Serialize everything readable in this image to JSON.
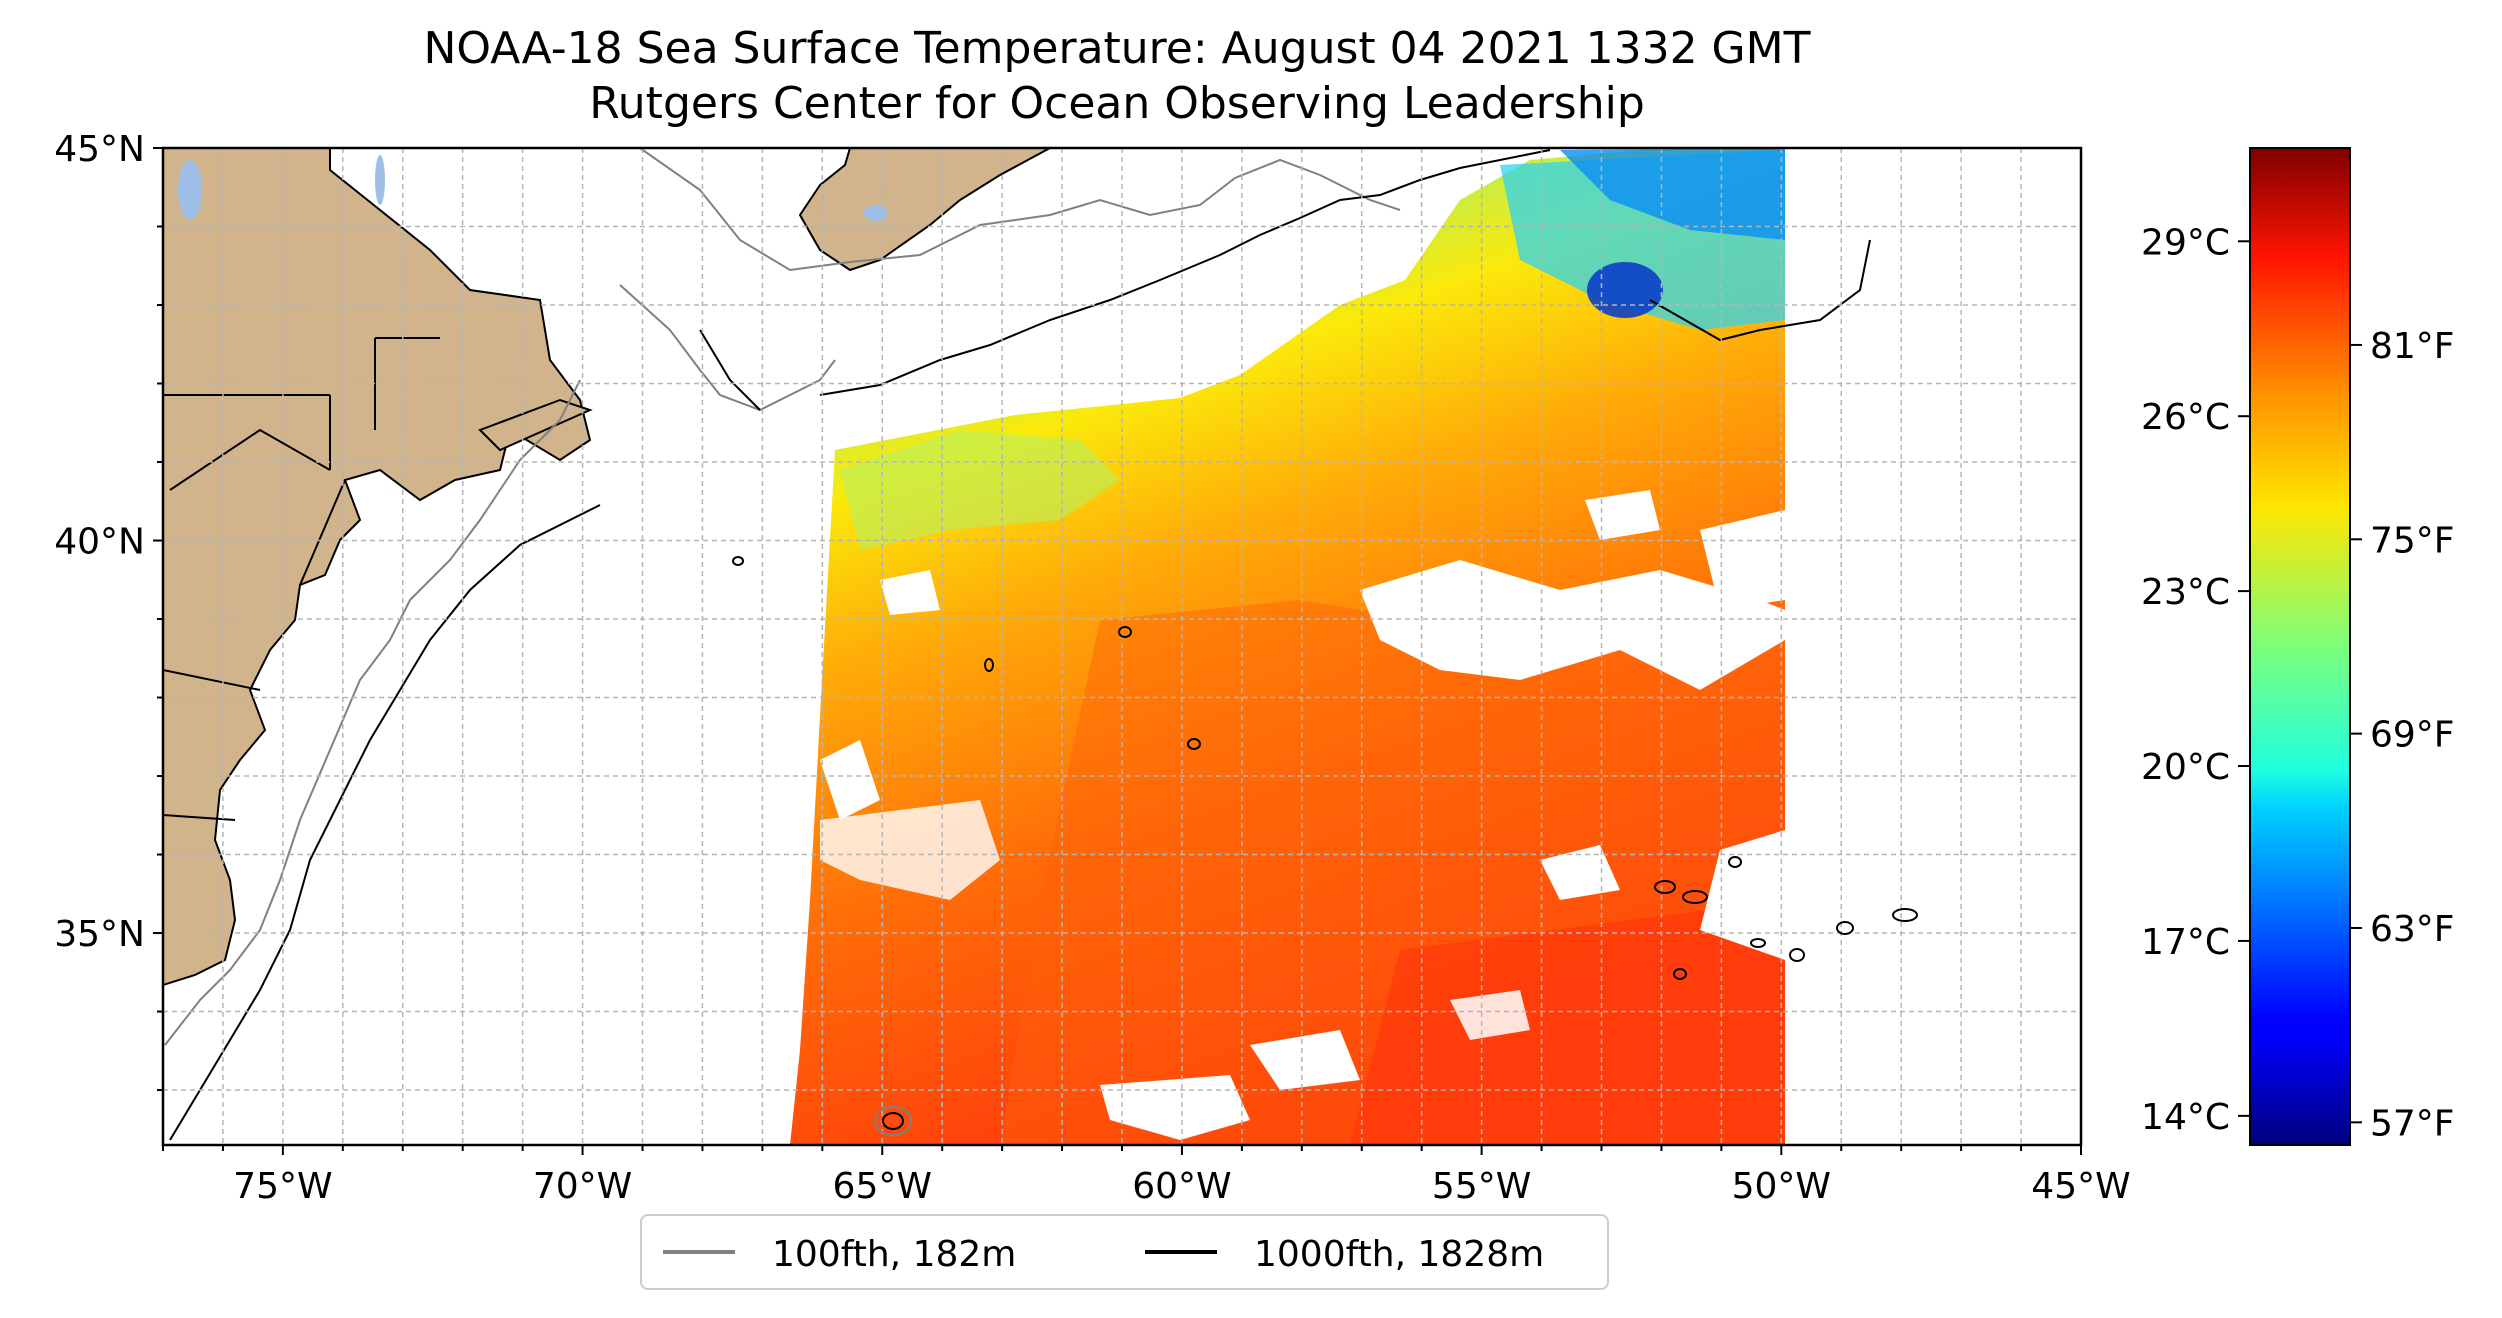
{
  "title": {
    "line1": "NOAA-18 Sea Surface Temperature: August 04 2021 1332 GMT",
    "line2": "Rutgers Center for Ocean Observing Leadership"
  },
  "map": {
    "lon_range": [
      -77,
      -45
    ],
    "lat_range": [
      32.3,
      45
    ],
    "lon_ticks": [
      {
        "value": -75,
        "label": "75°W"
      },
      {
        "value": -70,
        "label": "70°W"
      },
      {
        "value": -65,
        "label": "65°W"
      },
      {
        "value": -60,
        "label": "60°W"
      },
      {
        "value": -55,
        "label": "55°W"
      },
      {
        "value": -50,
        "label": "50°W"
      },
      {
        "value": -45,
        "label": "45°W"
      }
    ],
    "lat_ticks": [
      {
        "value": 45,
        "label": "45°N"
      },
      {
        "value": 40,
        "label": "40°N"
      },
      {
        "value": 35,
        "label": "35°N"
      }
    ],
    "grid": true,
    "grid_step_deg": 1,
    "colors": {
      "land": "#d2b48c",
      "lakes": "#9fbfe8",
      "isobath_100fth": "#808080",
      "isobath_1000fth": "#000000",
      "grid": "#b5b5b5"
    }
  },
  "legend": {
    "placement": "bottom-center",
    "entries": [
      {
        "label": "100fth, 182m",
        "color": "#808080"
      },
      {
        "label": "1000fth, 1828m",
        "color": "#000000"
      }
    ]
  },
  "colorbar": {
    "colormap": "jet",
    "celsius_range": [
      13.5,
      30.6
    ],
    "celsius_ticks": [
      {
        "value": 29,
        "label": "29°C"
      },
      {
        "value": 26,
        "label": "26°C"
      },
      {
        "value": 23,
        "label": "23°C"
      },
      {
        "value": 20,
        "label": "20°C"
      },
      {
        "value": 17,
        "label": "17°C"
      },
      {
        "value": 14,
        "label": "14°C"
      }
    ],
    "fahrenheit_ticks": [
      {
        "value": 81,
        "label": "81°F"
      },
      {
        "value": 75,
        "label": "75°F"
      },
      {
        "value": 69,
        "label": "69°F"
      },
      {
        "value": 63,
        "label": "63°F"
      },
      {
        "value": 57,
        "label": "57°F"
      }
    ]
  }
}
